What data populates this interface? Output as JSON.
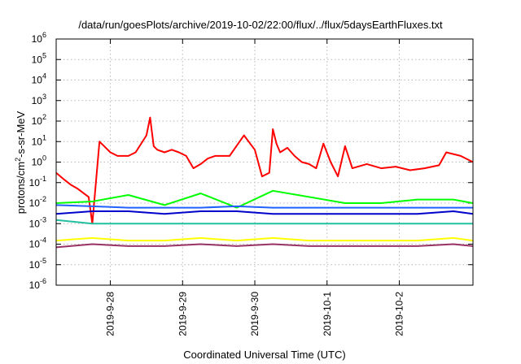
{
  "chart_data": {
    "type": "line",
    "title": "/data/run/goesPlots/archive/2019-10-02/22:00/flux/../flux/5daysEarthFluxes.txt",
    "xlabel": "Coordinated Universal Time (UTC)",
    "ylabel_parts": [
      "protons/cm",
      "2",
      "-s-sr-MeV"
    ],
    "yscale": "log",
    "ylim": [
      1e-06,
      1000000.0
    ],
    "xlim": [
      0,
      5.77
    ],
    "x_units": "days since 2019-09-27 06:00 UTC",
    "y_ticks": [
      {
        "value": 1e-06,
        "base": "10",
        "exp": "-6"
      },
      {
        "value": 1e-05,
        "base": "10",
        "exp": "-5"
      },
      {
        "value": 0.0001,
        "base": "10",
        "exp": "-4"
      },
      {
        "value": 0.001,
        "base": "10",
        "exp": "-3"
      },
      {
        "value": 0.01,
        "base": "10",
        "exp": "-2"
      },
      {
        "value": 0.1,
        "base": "10",
        "exp": "-1"
      },
      {
        "value": 1,
        "base": "10",
        "exp": "0"
      },
      {
        "value": 10.0,
        "base": "10",
        "exp": "1"
      },
      {
        "value": 100.0,
        "base": "10",
        "exp": "2"
      },
      {
        "value": 1000.0,
        "base": "10",
        "exp": "3"
      },
      {
        "value": 10000.0,
        "base": "10",
        "exp": "4"
      },
      {
        "value": 100000.0,
        "base": "10",
        "exp": "5"
      },
      {
        "value": 1000000.0,
        "base": "10",
        "exp": "6"
      }
    ],
    "x_ticks": [
      {
        "x": 0.75,
        "label": "2019-9-28"
      },
      {
        "x": 1.75,
        "label": "2019-9-29"
      },
      {
        "x": 2.75,
        "label": "2019-9-30"
      },
      {
        "x": 3.75,
        "label": "2019-10-1"
      },
      {
        "x": 4.75,
        "label": "2019-10-2"
      }
    ],
    "grid": true,
    "colors": {
      "red": "#ff0000",
      "green": "#00ff00",
      "dark_blue": "#0000cc",
      "blue": "#2060ff",
      "teal": "#20c0a0",
      "yellow": "#ffff00",
      "purple": "#993366"
    },
    "series": [
      {
        "color": "red",
        "x": [
          0,
          0.1,
          0.2,
          0.3,
          0.45,
          0.5,
          0.6,
          0.75,
          0.85,
          1.0,
          1.1,
          1.25,
          1.3,
          1.35,
          1.4,
          1.5,
          1.6,
          1.7,
          1.8,
          1.9,
          2.0,
          2.1,
          2.2,
          2.4,
          2.6,
          2.75,
          2.85,
          2.95,
          3.0,
          3.05,
          3.1,
          3.2,
          3.3,
          3.4,
          3.5,
          3.6,
          3.7,
          3.8,
          3.9,
          4.0,
          4.1,
          4.3,
          4.5,
          4.7,
          4.9,
          5.1,
          5.3,
          5.4,
          5.6,
          5.77
        ],
        "y": [
          0.3,
          0.15,
          0.08,
          0.05,
          0.02,
          0.001,
          10,
          3,
          2,
          2,
          3,
          20,
          150,
          6,
          4,
          3,
          4,
          3,
          2,
          0.5,
          0.8,
          1.5,
          2,
          2,
          20,
          4,
          0.2,
          0.3,
          40,
          8,
          3,
          5,
          2,
          1,
          0.8,
          0.5,
          8,
          1,
          0.2,
          6,
          0.5,
          0.8,
          0.5,
          0.6,
          0.4,
          0.5,
          0.7,
          3,
          2,
          1
        ]
      },
      {
        "color": "green",
        "x": [
          0,
          0.5,
          1.0,
          1.5,
          2.0,
          2.5,
          3.0,
          3.5,
          4.0,
          4.5,
          5.0,
          5.5,
          5.77
        ],
        "y": [
          0.01,
          0.012,
          0.025,
          0.008,
          0.03,
          0.006,
          0.04,
          0.02,
          0.01,
          0.01,
          0.015,
          0.015,
          0.01
        ]
      },
      {
        "color": "dark_blue",
        "x": [
          0,
          0.5,
          1.0,
          1.5,
          2.0,
          2.5,
          3.0,
          3.5,
          4.0,
          4.5,
          5.0,
          5.5,
          5.77
        ],
        "y": [
          0.003,
          0.004,
          0.004,
          0.003,
          0.004,
          0.004,
          0.003,
          0.003,
          0.003,
          0.003,
          0.003,
          0.004,
          0.003
        ]
      },
      {
        "color": "blue",
        "x": [
          0,
          0.5,
          1.0,
          1.5,
          2.0,
          2.5,
          3.0,
          3.5,
          4.0,
          4.5,
          5.0,
          5.5,
          5.77
        ],
        "y": [
          0.008,
          0.007,
          0.006,
          0.006,
          0.006,
          0.007,
          0.006,
          0.006,
          0.006,
          0.006,
          0.006,
          0.006,
          0.006
        ]
      },
      {
        "color": "teal",
        "x": [
          0,
          0.5,
          1.0,
          1.5,
          2.0,
          2.5,
          3.0,
          3.5,
          4.0,
          4.5,
          5.0,
          5.5,
          5.77
        ],
        "y": [
          0.0015,
          0.001,
          0.001,
          0.001,
          0.001,
          0.001,
          0.001,
          0.001,
          0.001,
          0.001,
          0.001,
          0.001,
          0.001
        ]
      },
      {
        "color": "yellow",
        "x": [
          0,
          0.5,
          1.0,
          1.5,
          2.0,
          2.5,
          3.0,
          3.5,
          4.0,
          4.5,
          5.0,
          5.5,
          5.77
        ],
        "y": [
          0.00015,
          0.0002,
          0.00015,
          0.00015,
          0.0002,
          0.00015,
          0.0002,
          0.00015,
          0.00015,
          0.00015,
          0.00015,
          0.0002,
          0.00015
        ]
      },
      {
        "color": "purple",
        "x": [
          0,
          0.5,
          1.0,
          1.5,
          2.0,
          2.5,
          3.0,
          3.5,
          4.0,
          4.5,
          5.0,
          5.5,
          5.77
        ],
        "y": [
          7e-05,
          0.0001,
          8e-05,
          8e-05,
          0.0001,
          8e-05,
          0.0001,
          8e-05,
          8e-05,
          8e-05,
          8e-05,
          0.0001,
          8e-05
        ]
      }
    ]
  }
}
